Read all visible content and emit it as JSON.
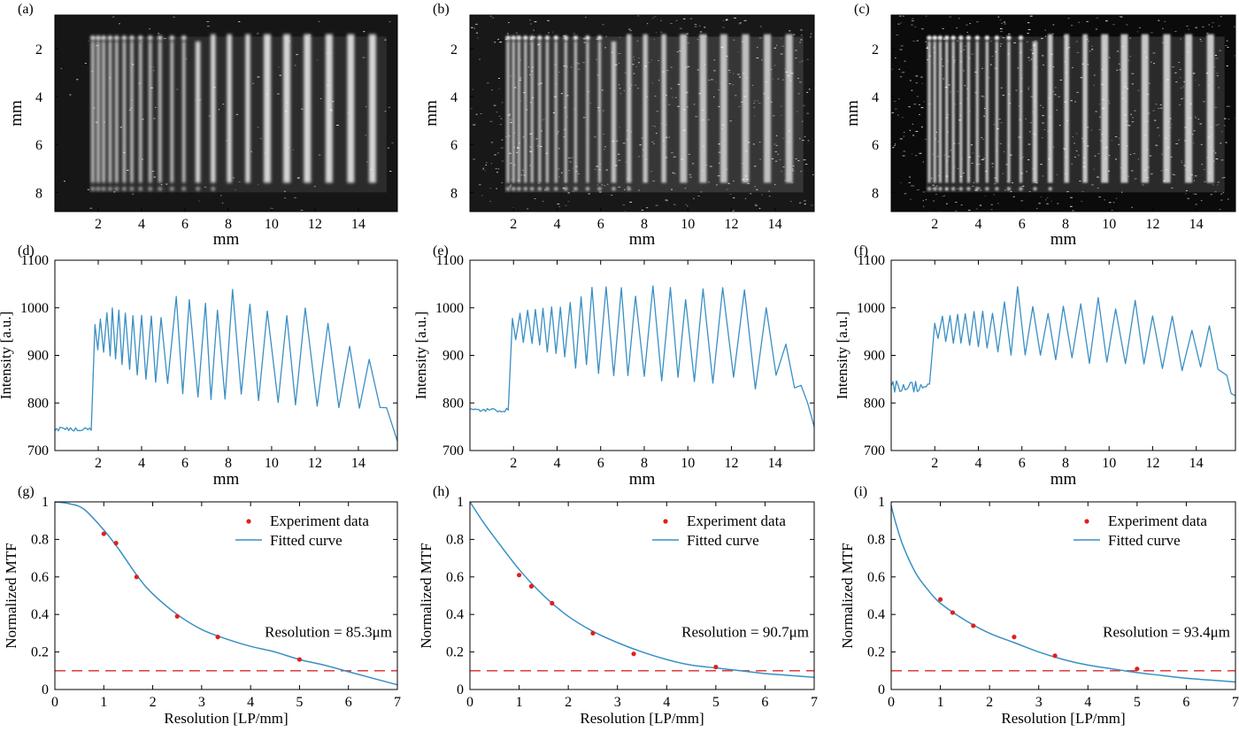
{
  "chart_data": [
    {
      "id": "a",
      "panel_label": "(a)",
      "type": "image",
      "xlabel": "mm",
      "ylabel": "mm",
      "xticks": [
        "2",
        "4",
        "6",
        "8",
        "10",
        "12",
        "14"
      ],
      "yticks": [
        "2",
        "4",
        "6",
        "8"
      ],
      "xlim": [
        0,
        15.8
      ],
      "ylim": [
        8.8,
        0.6
      ],
      "bar_x": [
        1.75,
        2.0,
        2.25,
        2.55,
        2.85,
        3.2,
        3.55,
        3.95,
        4.4,
        4.85,
        5.4,
        5.95,
        6.6,
        7.3,
        8.05,
        8.9,
        9.8,
        10.7,
        11.65,
        12.65,
        13.65,
        14.65
      ]
    },
    {
      "id": "b",
      "panel_label": "(b)",
      "type": "image",
      "xlabel": "mm",
      "ylabel": "mm",
      "xticks": [
        "2",
        "4",
        "6",
        "8",
        "10",
        "12",
        "14"
      ],
      "yticks": [
        "2",
        "4",
        "6",
        "8"
      ],
      "xlim": [
        0,
        15.8
      ],
      "ylim": [
        8.8,
        0.6
      ],
      "bar_x": [
        1.75,
        2.0,
        2.25,
        2.55,
        2.85,
        3.2,
        3.55,
        3.95,
        4.4,
        4.85,
        5.4,
        5.95,
        6.6,
        7.3,
        8.05,
        8.9,
        9.8,
        10.7,
        11.65,
        12.65,
        13.65,
        14.65
      ]
    },
    {
      "id": "c",
      "panel_label": "(c)",
      "type": "image",
      "xlabel": "mm",
      "ylabel": "mm",
      "xticks": [
        "2",
        "4",
        "6",
        "8",
        "10",
        "12",
        "14"
      ],
      "yticks": [
        "2",
        "4",
        "6",
        "8"
      ],
      "xlim": [
        0,
        15.8
      ],
      "ylim": [
        8.8,
        0.6
      ],
      "bar_x": [
        1.75,
        2.0,
        2.25,
        2.55,
        2.85,
        3.2,
        3.55,
        3.95,
        4.4,
        4.85,
        5.4,
        5.95,
        6.6,
        7.3,
        8.05,
        8.9,
        9.8,
        10.7,
        11.65,
        12.65,
        13.65,
        14.65
      ]
    },
    {
      "id": "d",
      "panel_label": "(d)",
      "type": "line",
      "xlabel": "mm",
      "ylabel": "Intensity [a.u.]",
      "xticks": [
        "2",
        "4",
        "6",
        "8",
        "10",
        "12",
        "14"
      ],
      "yticks": [
        "700",
        "800",
        "900",
        "1000",
        "1100"
      ],
      "xlim": [
        0,
        15.8
      ],
      "ylim": [
        700,
        1100
      ],
      "series": [
        {
          "baseline_left": 745,
          "edge_x": 1.7,
          "plateau": [
            [
              1.8,
              900
            ],
            [
              5,
              860
            ],
            [
              8,
              820
            ],
            [
              12,
              800
            ],
            [
              14.5,
              790
            ]
          ],
          "peaks": [
            [
              1.85,
              965
            ],
            [
              2.1,
              975
            ],
            [
              2.4,
              990
            ],
            [
              2.65,
              1000
            ],
            [
              2.95,
              998
            ],
            [
              3.25,
              990
            ],
            [
              3.6,
              985
            ],
            [
              4.0,
              982
            ],
            [
              4.45,
              980
            ],
            [
              4.9,
              978
            ],
            [
              5.6,
              1025
            ],
            [
              6.2,
              1015
            ],
            [
              6.95,
              1010
            ],
            [
              7.5,
              995
            ],
            [
              8.2,
              1040
            ],
            [
              9.0,
              1010
            ],
            [
              9.8,
              990
            ],
            [
              10.7,
              985
            ],
            [
              11.55,
              1000
            ],
            [
              12.6,
              970
            ],
            [
              13.6,
              920
            ],
            [
              14.5,
              890
            ]
          ],
          "troughs": [
            [
              1.98,
              910
            ],
            [
              2.25,
              905
            ],
            [
              2.55,
              900
            ],
            [
              2.8,
              890
            ],
            [
              3.1,
              880
            ],
            [
              3.45,
              870
            ],
            [
              3.8,
              860
            ],
            [
              4.2,
              850
            ],
            [
              4.65,
              845
            ],
            [
              5.2,
              840
            ],
            [
              5.9,
              820
            ],
            [
              6.6,
              815
            ],
            [
              7.2,
              810
            ],
            [
              7.85,
              810
            ],
            [
              8.6,
              820
            ],
            [
              9.4,
              805
            ],
            [
              10.3,
              800
            ],
            [
              11.1,
              795
            ],
            [
              12.1,
              795
            ],
            [
              13.1,
              790
            ],
            [
              14.05,
              790
            ],
            [
              15.0,
              790
            ]
          ],
          "end": [
            [
              15.3,
              790
            ],
            [
              15.8,
              720
            ]
          ]
        }
      ]
    },
    {
      "id": "e",
      "panel_label": "(e)",
      "type": "line",
      "xlabel": "mm",
      "ylabel": "Intensity [a.u.]",
      "xticks": [
        "2",
        "4",
        "6",
        "8",
        "10",
        "12",
        "14"
      ],
      "yticks": [
        "700",
        "800",
        "900",
        "1000",
        "1100"
      ],
      "xlim": [
        0,
        15.8
      ],
      "ylim": [
        700,
        1100
      ],
      "series": [
        {
          "baseline_left": 785,
          "edge_x": 1.8,
          "peaks": [
            [
              1.95,
              975
            ],
            [
              2.3,
              990
            ],
            [
              2.65,
              995
            ],
            [
              3.0,
              995
            ],
            [
              3.35,
              1000
            ],
            [
              3.75,
              1000
            ],
            [
              4.15,
              1000
            ],
            [
              4.6,
              1010
            ],
            [
              5.1,
              1025
            ],
            [
              5.6,
              1040
            ],
            [
              6.25,
              1045
            ],
            [
              6.95,
              1040
            ],
            [
              7.6,
              1025
            ],
            [
              8.4,
              1045
            ],
            [
              9.2,
              1040
            ],
            [
              9.9,
              1015
            ],
            [
              10.7,
              1040
            ],
            [
              11.6,
              1045
            ],
            [
              12.6,
              1040
            ],
            [
              13.6,
              1000
            ],
            [
              14.5,
              925
            ],
            [
              15.2,
              840
            ]
          ],
          "troughs": [
            [
              2.1,
              935
            ],
            [
              2.45,
              930
            ],
            [
              2.85,
              925
            ],
            [
              3.2,
              920
            ],
            [
              3.55,
              910
            ],
            [
              3.95,
              905
            ],
            [
              4.35,
              895
            ],
            [
              4.85,
              875
            ],
            [
              5.35,
              880
            ],
            [
              5.9,
              865
            ],
            [
              6.6,
              855
            ],
            [
              7.25,
              855
            ],
            [
              8.0,
              855
            ],
            [
              8.8,
              845
            ],
            [
              9.55,
              855
            ],
            [
              10.3,
              845
            ],
            [
              11.15,
              840
            ],
            [
              12.1,
              855
            ],
            [
              13.1,
              830
            ],
            [
              14.05,
              860
            ],
            [
              14.9,
              830
            ]
          ],
          "end": [
            [
              15.5,
              800
            ],
            [
              15.8,
              750
            ]
          ]
        }
      ]
    },
    {
      "id": "f",
      "panel_label": "(f)",
      "type": "line",
      "xlabel": "mm",
      "ylabel": "Intensity [a.u.]",
      "xticks": [
        "2",
        "4",
        "6",
        "8",
        "10",
        "12",
        "14"
      ],
      "yticks": [
        "700",
        "800",
        "900",
        "1000",
        "1100"
      ],
      "xlim": [
        0,
        15.8
      ],
      "ylim": [
        700,
        1100
      ],
      "series": [
        {
          "baseline_left": 835,
          "edge_x": 1.8,
          "peaks": [
            [
              2.0,
              965
            ],
            [
              2.35,
              980
            ],
            [
              2.7,
              985
            ],
            [
              3.05,
              985
            ],
            [
              3.4,
              990
            ],
            [
              3.8,
              990
            ],
            [
              4.2,
              995
            ],
            [
              4.65,
              990
            ],
            [
              5.2,
              1010
            ],
            [
              5.8,
              1045
            ],
            [
              6.5,
              1005
            ],
            [
              7.2,
              990
            ],
            [
              7.9,
              1005
            ],
            [
              8.7,
              1010
            ],
            [
              9.5,
              1020
            ],
            [
              10.3,
              995
            ],
            [
              11.2,
              1015
            ],
            [
              12.0,
              985
            ],
            [
              12.9,
              980
            ],
            [
              13.8,
              950
            ],
            [
              14.6,
              965
            ],
            [
              15.4,
              860
            ]
          ],
          "troughs": [
            [
              2.15,
              935
            ],
            [
              2.5,
              930
            ],
            [
              2.85,
              925
            ],
            [
              3.2,
              925
            ],
            [
              3.6,
              920
            ],
            [
              4.0,
              920
            ],
            [
              4.4,
              915
            ],
            [
              4.9,
              905
            ],
            [
              5.5,
              900
            ],
            [
              6.15,
              900
            ],
            [
              6.85,
              900
            ],
            [
              7.55,
              890
            ],
            [
              8.3,
              895
            ],
            [
              9.1,
              885
            ],
            [
              9.9,
              885
            ],
            [
              10.75,
              880
            ],
            [
              11.6,
              885
            ],
            [
              12.45,
              875
            ],
            [
              13.35,
              870
            ],
            [
              14.2,
              875
            ],
            [
              15.0,
              870
            ]
          ],
          "end": [
            [
              15.6,
              820
            ],
            [
              15.8,
              815
            ]
          ]
        }
      ]
    },
    {
      "id": "g",
      "panel_label": "(g)",
      "type": "scatter+line",
      "xlabel": "Resolution [LP/mm]",
      "ylabel": "Normalized MTF",
      "xticks": [
        "0",
        "1",
        "2",
        "3",
        "4",
        "5",
        "6",
        "7"
      ],
      "yticks": [
        "0",
        "0.2",
        "0.4",
        "0.6",
        "0.8",
        "1"
      ],
      "xlim": [
        0,
        7
      ],
      "ylim": [
        0,
        1
      ],
      "threshold": 0.1,
      "annotation": "Resolution = 85.3μm",
      "legend": [
        "Experiment data",
        "Fitted curve"
      ],
      "experiment_points": [
        [
          1.0,
          0.83
        ],
        [
          1.25,
          0.78
        ],
        [
          1.67,
          0.6
        ],
        [
          2.5,
          0.39
        ],
        [
          3.33,
          0.28
        ],
        [
          5.0,
          0.16
        ]
      ],
      "fitted_curve": [
        [
          0,
          1.0
        ],
        [
          0.3,
          0.99
        ],
        [
          0.6,
          0.96
        ],
        [
          1.0,
          0.85
        ],
        [
          1.3,
          0.75
        ],
        [
          1.7,
          0.6
        ],
        [
          2.0,
          0.51
        ],
        [
          2.5,
          0.4
        ],
        [
          3.0,
          0.32
        ],
        [
          3.5,
          0.27
        ],
        [
          4.0,
          0.23
        ],
        [
          4.5,
          0.2
        ],
        [
          5.0,
          0.16
        ],
        [
          5.5,
          0.13
        ],
        [
          6.0,
          0.095
        ],
        [
          6.5,
          0.06
        ],
        [
          7.0,
          0.025
        ]
      ]
    },
    {
      "id": "h",
      "panel_label": "(h)",
      "type": "scatter+line",
      "xlabel": "Resolution [LP/mm]",
      "ylabel": "Normalized MTF",
      "xticks": [
        "0",
        "1",
        "2",
        "3",
        "4",
        "5",
        "6",
        "7"
      ],
      "yticks": [
        "0",
        "0.2",
        "0.4",
        "0.6",
        "0.8",
        "1"
      ],
      "xlim": [
        0,
        7
      ],
      "ylim": [
        0,
        1
      ],
      "threshold": 0.1,
      "annotation": "Resolution = 90.7μm",
      "legend": [
        "Experiment data",
        "Fitted curve"
      ],
      "experiment_points": [
        [
          1.0,
          0.61
        ],
        [
          1.25,
          0.55
        ],
        [
          1.67,
          0.46
        ],
        [
          2.5,
          0.3
        ],
        [
          3.33,
          0.19
        ],
        [
          5.0,
          0.12
        ]
      ],
      "fitted_curve": [
        [
          0,
          1.0
        ],
        [
          0.25,
          0.9
        ],
        [
          0.5,
          0.81
        ],
        [
          1.0,
          0.64
        ],
        [
          1.5,
          0.5
        ],
        [
          2.0,
          0.39
        ],
        [
          2.5,
          0.31
        ],
        [
          3.0,
          0.25
        ],
        [
          3.5,
          0.2
        ],
        [
          4.0,
          0.16
        ],
        [
          4.5,
          0.13
        ],
        [
          5.0,
          0.115
        ],
        [
          5.5,
          0.1
        ],
        [
          6.0,
          0.085
        ],
        [
          6.5,
          0.075
        ],
        [
          7.0,
          0.065
        ]
      ]
    },
    {
      "id": "i",
      "panel_label": "(i)",
      "type": "scatter+line",
      "xlabel": "Resolution [LP/mm]",
      "ylabel": "Normalized MTF",
      "xticks": [
        "0",
        "1",
        "2",
        "3",
        "4",
        "5",
        "6",
        "7"
      ],
      "yticks": [
        "0",
        "0.2",
        "0.4",
        "0.6",
        "0.8",
        "1"
      ],
      "xlim": [
        0,
        7
      ],
      "ylim": [
        0,
        1
      ],
      "threshold": 0.1,
      "annotation": "Resolution = 93.4μm",
      "legend": [
        "Experiment data",
        "Fitted curve"
      ],
      "experiment_points": [
        [
          1.0,
          0.48
        ],
        [
          1.25,
          0.41
        ],
        [
          1.67,
          0.34
        ],
        [
          2.5,
          0.28
        ],
        [
          3.33,
          0.18
        ],
        [
          5.0,
          0.11
        ]
      ],
      "fitted_curve": [
        [
          0,
          0.98
        ],
        [
          0.1,
          0.88
        ],
        [
          0.25,
          0.76
        ],
        [
          0.5,
          0.62
        ],
        [
          0.75,
          0.53
        ],
        [
          1.0,
          0.46
        ],
        [
          1.5,
          0.37
        ],
        [
          2.0,
          0.3
        ],
        [
          2.5,
          0.25
        ],
        [
          3.0,
          0.2
        ],
        [
          3.5,
          0.16
        ],
        [
          4.0,
          0.13
        ],
        [
          4.5,
          0.11
        ],
        [
          5.0,
          0.09
        ],
        [
          5.5,
          0.075
        ],
        [
          6.0,
          0.06
        ],
        [
          6.5,
          0.05
        ],
        [
          7.0,
          0.04
        ]
      ]
    }
  ],
  "colors": {
    "line": "#3a8fc4",
    "points": "#e0201b",
    "threshold": "#d92a2a",
    "axis": "#000000"
  }
}
